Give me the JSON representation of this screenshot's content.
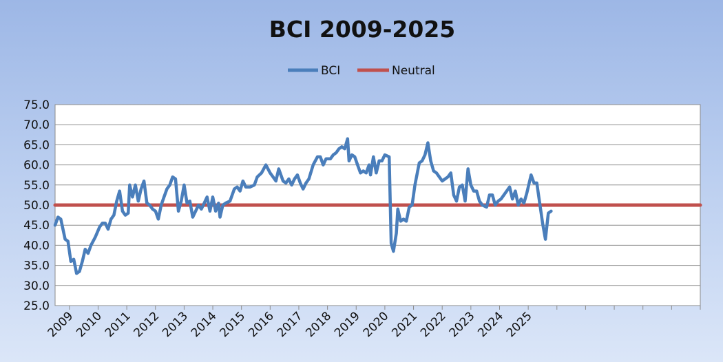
{
  "chart_data": {
    "type": "line",
    "title": "BCI 2009-2025",
    "xlabel": "",
    "ylabel": "",
    "ylim": [
      25,
      75
    ],
    "yticks": [
      "75.0",
      "70.0",
      "65.0",
      "60.0",
      "55.0",
      "50.0",
      "45.0",
      "40.0",
      "35.0",
      "30.0",
      "25.0"
    ],
    "categories": [
      "2009",
      "2010",
      "2011",
      "2012",
      "2013",
      "2014",
      "2015",
      "2016",
      "2017",
      "2018",
      "2019",
      "2020",
      "2021",
      "2022",
      "2023",
      "2024",
      "2025"
    ],
    "x_range": [
      2008.5,
      2031
    ],
    "legend": {
      "placement": "top",
      "entries": [
        "BCI",
        "Neutral"
      ]
    },
    "grid": true,
    "series": [
      {
        "name": "BCI",
        "color": "#4a7ebb",
        "points": [
          [
            2008.5,
            45.0
          ],
          [
            2008.6,
            47.0
          ],
          [
            2008.7,
            46.5
          ],
          [
            2008.85,
            41.5
          ],
          [
            2008.95,
            41.0
          ],
          [
            2009.05,
            36.0
          ],
          [
            2009.15,
            36.5
          ],
          [
            2009.25,
            33.0
          ],
          [
            2009.35,
            33.5
          ],
          [
            2009.45,
            36.0
          ],
          [
            2009.55,
            39.0
          ],
          [
            2009.65,
            38.0
          ],
          [
            2009.75,
            40.0
          ],
          [
            2009.9,
            42.0
          ],
          [
            2010.05,
            44.5
          ],
          [
            2010.15,
            45.5
          ],
          [
            2010.25,
            45.5
          ],
          [
            2010.35,
            44.0
          ],
          [
            2010.45,
            46.5
          ],
          [
            2010.55,
            47.5
          ],
          [
            2010.65,
            51.0
          ],
          [
            2010.75,
            53.5
          ],
          [
            2010.85,
            48.5
          ],
          [
            2010.95,
            47.5
          ],
          [
            2011.05,
            48.0
          ],
          [
            2011.1,
            55.0
          ],
          [
            2011.2,
            52.0
          ],
          [
            2011.3,
            55.0
          ],
          [
            2011.4,
            51.0
          ],
          [
            2011.5,
            54.0
          ],
          [
            2011.6,
            56.0
          ],
          [
            2011.7,
            50.5
          ],
          [
            2011.8,
            50.0
          ],
          [
            2011.9,
            49.0
          ],
          [
            2012.0,
            48.5
          ],
          [
            2012.1,
            46.5
          ],
          [
            2012.2,
            50.0
          ],
          [
            2012.3,
            52.0
          ],
          [
            2012.4,
            54.0
          ],
          [
            2012.5,
            55.0
          ],
          [
            2012.6,
            57.0
          ],
          [
            2012.7,
            56.5
          ],
          [
            2012.8,
            48.5
          ],
          [
            2012.9,
            51.0
          ],
          [
            2013.0,
            55.0
          ],
          [
            2013.1,
            50.5
          ],
          [
            2013.2,
            51.0
          ],
          [
            2013.3,
            47.0
          ],
          [
            2013.4,
            48.5
          ],
          [
            2013.5,
            50.0
          ],
          [
            2013.6,
            49.0
          ],
          [
            2013.7,
            50.5
          ],
          [
            2013.8,
            52.0
          ],
          [
            2013.9,
            48.5
          ],
          [
            2014.0,
            52.0
          ],
          [
            2014.1,
            48.5
          ],
          [
            2014.2,
            50.5
          ],
          [
            2014.25,
            47.0
          ],
          [
            2014.35,
            50.0
          ],
          [
            2014.45,
            50.5
          ],
          [
            2014.6,
            51.0
          ],
          [
            2014.75,
            54.0
          ],
          [
            2014.85,
            54.5
          ],
          [
            2014.95,
            53.5
          ],
          [
            2015.05,
            56.0
          ],
          [
            2015.15,
            54.5
          ],
          [
            2015.3,
            54.5
          ],
          [
            2015.45,
            55.0
          ],
          [
            2015.55,
            57.0
          ],
          [
            2015.7,
            58.0
          ],
          [
            2015.85,
            60.0
          ],
          [
            2016.0,
            58.0
          ],
          [
            2016.1,
            57.0
          ],
          [
            2016.2,
            56.0
          ],
          [
            2016.3,
            59.0
          ],
          [
            2016.45,
            56.0
          ],
          [
            2016.55,
            55.5
          ],
          [
            2016.65,
            56.5
          ],
          [
            2016.75,
            55.0
          ],
          [
            2016.85,
            56.5
          ],
          [
            2016.95,
            57.5
          ],
          [
            2017.05,
            55.5
          ],
          [
            2017.15,
            54.0
          ],
          [
            2017.25,
            55.5
          ],
          [
            2017.35,
            56.5
          ],
          [
            2017.5,
            60.0
          ],
          [
            2017.65,
            62.0
          ],
          [
            2017.75,
            62.0
          ],
          [
            2017.85,
            60.0
          ],
          [
            2017.95,
            61.5
          ],
          [
            2018.1,
            61.5
          ],
          [
            2018.2,
            62.5
          ],
          [
            2018.3,
            63.0
          ],
          [
            2018.4,
            64.0
          ],
          [
            2018.5,
            64.5
          ],
          [
            2018.6,
            64.0
          ],
          [
            2018.7,
            66.5
          ],
          [
            2018.75,
            61.0
          ],
          [
            2018.85,
            62.5
          ],
          [
            2018.95,
            62.0
          ],
          [
            2019.05,
            60.0
          ],
          [
            2019.15,
            58.0
          ],
          [
            2019.25,
            58.5
          ],
          [
            2019.35,
            58.0
          ],
          [
            2019.45,
            60.0
          ],
          [
            2019.5,
            57.5
          ],
          [
            2019.6,
            62.0
          ],
          [
            2019.7,
            58.0
          ],
          [
            2019.8,
            61.0
          ],
          [
            2019.9,
            61.0
          ],
          [
            2020.0,
            62.5
          ],
          [
            2020.15,
            62.0
          ],
          [
            2020.22,
            40.5
          ],
          [
            2020.3,
            38.5
          ],
          [
            2020.4,
            43.0
          ],
          [
            2020.45,
            49.0
          ],
          [
            2020.55,
            46.0
          ],
          [
            2020.65,
            46.5
          ],
          [
            2020.75,
            46.0
          ],
          [
            2020.85,
            49.5
          ],
          [
            2020.95,
            50.0
          ],
          [
            2021.05,
            55.0
          ],
          [
            2021.2,
            60.5
          ],
          [
            2021.3,
            61.0
          ],
          [
            2021.4,
            62.5
          ],
          [
            2021.5,
            65.5
          ],
          [
            2021.6,
            61.0
          ],
          [
            2021.7,
            58.5
          ],
          [
            2021.8,
            58.0
          ],
          [
            2021.9,
            57.0
          ],
          [
            2022.0,
            56.0
          ],
          [
            2022.1,
            56.5
          ],
          [
            2022.2,
            57.0
          ],
          [
            2022.3,
            58.0
          ],
          [
            2022.4,
            52.5
          ],
          [
            2022.5,
            51.0
          ],
          [
            2022.6,
            54.5
          ],
          [
            2022.7,
            55.0
          ],
          [
            2022.8,
            51.0
          ],
          [
            2022.9,
            59.0
          ],
          [
            2023.0,
            55.0
          ],
          [
            2023.1,
            53.5
          ],
          [
            2023.2,
            53.5
          ],
          [
            2023.3,
            51.0
          ],
          [
            2023.4,
            50.0
          ],
          [
            2023.55,
            49.5
          ],
          [
            2023.65,
            52.5
          ],
          [
            2023.75,
            52.5
          ],
          [
            2023.85,
            50.0
          ],
          [
            2023.95,
            51.0
          ],
          [
            2024.05,
            51.5
          ],
          [
            2024.15,
            52.5
          ],
          [
            2024.25,
            53.5
          ],
          [
            2024.35,
            54.5
          ],
          [
            2024.45,
            51.5
          ],
          [
            2024.55,
            53.5
          ],
          [
            2024.65,
            50.0
          ],
          [
            2024.75,
            51.5
          ],
          [
            2024.85,
            50.5
          ],
          [
            2024.95,
            53.0
          ],
          [
            2025.1,
            57.5
          ],
          [
            2025.2,
            55.5
          ],
          [
            2025.3,
            55.5
          ],
          [
            2025.4,
            50.5
          ],
          [
            2025.5,
            45.5
          ],
          [
            2025.6,
            41.5
          ],
          [
            2025.7,
            48.0
          ],
          [
            2025.8,
            48.5
          ]
        ]
      },
      {
        "name": "Neutral",
        "color": "#c0504d",
        "points": [
          [
            2008.5,
            50
          ],
          [
            2031,
            50
          ]
        ]
      }
    ]
  }
}
